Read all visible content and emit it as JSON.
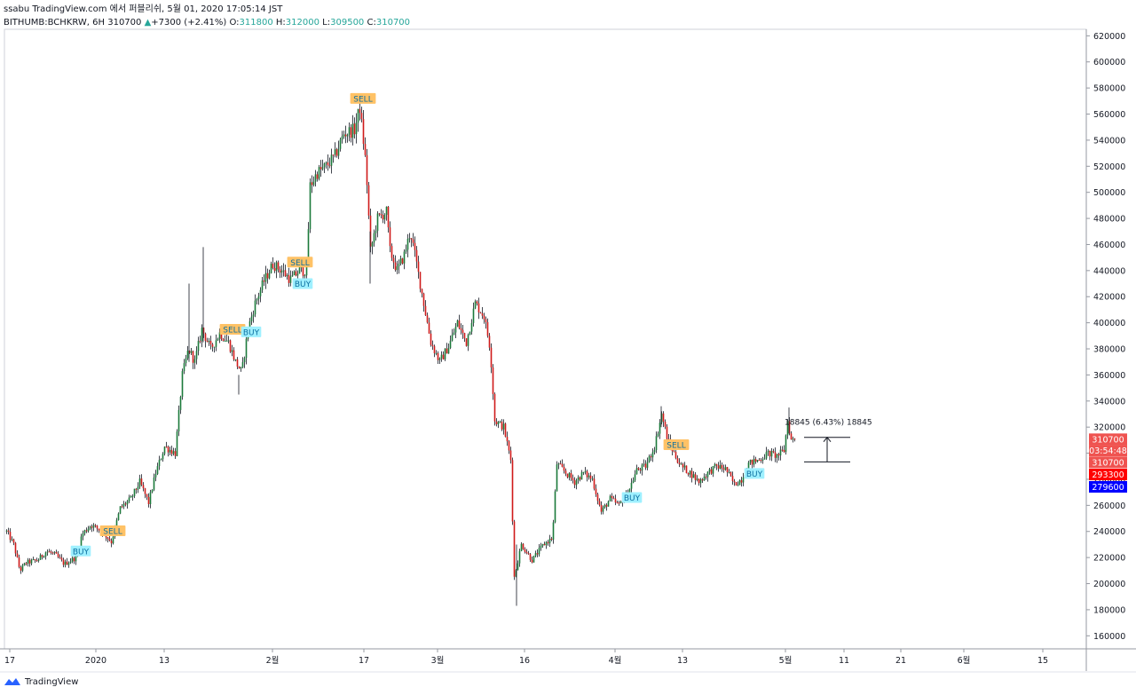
{
  "header": {
    "publish_line": "ssabu TradingView.com 에서 퍼블리쉬, 5월 01, 2020 17:05:14 JST",
    "symbol": "BITHUMB:BCHKRW, 6H",
    "last": "310700",
    "change": "+7300 (+2.41%)",
    "o_label": "O:",
    "o_val": "311800",
    "h_label": "H:",
    "h_val": "312000",
    "l_label": "L:",
    "l_val": "309500",
    "c_label": "C:",
    "c_val": "310700"
  },
  "footer": {
    "brand": "TradingView"
  },
  "colors": {
    "up": "#26a69a",
    "down": "#ef5350",
    "buy": "#9ff0ff",
    "sell": "#ffc266",
    "blue": "#0000ff"
  },
  "chart_data": {
    "type": "candlestick",
    "ylim": [
      150000,
      625000
    ],
    "y_ticks": [
      "160000",
      "180000",
      "200000",
      "220000",
      "240000",
      "260000",
      "280000",
      "300000",
      "320000",
      "340000",
      "360000",
      "380000",
      "400000",
      "420000",
      "440000",
      "460000",
      "480000",
      "500000",
      "520000",
      "540000",
      "560000",
      "580000",
      "600000",
      "620000"
    ],
    "x_ticks": [
      "17",
      "2020",
      "13",
      "2월",
      "17",
      "3월",
      "16",
      "4월",
      "13",
      "5월",
      "11",
      "21",
      "6월",
      "15"
    ],
    "price_path": [
      [
        0,
        240000
      ],
      [
        8,
        230000
      ],
      [
        15,
        210000
      ],
      [
        22,
        216000
      ],
      [
        35,
        218000
      ],
      [
        45,
        225000
      ],
      [
        55,
        222000
      ],
      [
        65,
        215000
      ],
      [
        78,
        220000
      ],
      [
        85,
        238000
      ],
      [
        95,
        245000
      ],
      [
        108,
        240000
      ],
      [
        118,
        232000
      ],
      [
        128,
        258000
      ],
      [
        140,
        265000
      ],
      [
        150,
        278000
      ],
      [
        160,
        262000
      ],
      [
        168,
        285000
      ],
      [
        178,
        305000
      ],
      [
        190,
        300000
      ],
      [
        198,
        360000
      ],
      [
        205,
        380000
      ],
      [
        212,
        370000
      ],
      [
        220,
        395000
      ],
      [
        230,
        380000
      ],
      [
        240,
        392000
      ],
      [
        250,
        385000
      ],
      [
        258,
        370000
      ],
      [
        265,
        362000
      ],
      [
        272,
        395000
      ],
      [
        280,
        415000
      ],
      [
        290,
        432000
      ],
      [
        300,
        445000
      ],
      [
        310,
        440000
      ],
      [
        320,
        433000
      ],
      [
        330,
        440000
      ],
      [
        338,
        440000
      ],
      [
        342,
        505000
      ],
      [
        350,
        515000
      ],
      [
        360,
        520000
      ],
      [
        370,
        528000
      ],
      [
        380,
        545000
      ],
      [
        392,
        548000
      ],
      [
        398,
        565000
      ],
      [
        405,
        520000
      ],
      [
        410,
        455000
      ],
      [
        418,
        480000
      ],
      [
        428,
        485000
      ],
      [
        432,
        455000
      ],
      [
        440,
        440000
      ],
      [
        448,
        452000
      ],
      [
        455,
        470000
      ],
      [
        462,
        445000
      ],
      [
        470,
        415000
      ],
      [
        478,
        385000
      ],
      [
        488,
        370000
      ],
      [
        498,
        382000
      ],
      [
        508,
        400000
      ],
      [
        518,
        385000
      ],
      [
        528,
        415000
      ],
      [
        538,
        405000
      ],
      [
        545,
        380000
      ],
      [
        550,
        325000
      ],
      [
        560,
        320000
      ],
      [
        568,
        295000
      ],
      [
        572,
        205000
      ],
      [
        580,
        230000
      ],
      [
        592,
        218000
      ],
      [
        605,
        230000
      ],
      [
        615,
        235000
      ],
      [
        620,
        292000
      ],
      [
        630,
        285000
      ],
      [
        640,
        278000
      ],
      [
        650,
        285000
      ],
      [
        660,
        280000
      ],
      [
        670,
        255000
      ],
      [
        680,
        265000
      ],
      [
        690,
        260000
      ],
      [
        700,
        270000
      ],
      [
        710,
        287000
      ],
      [
        720,
        290000
      ],
      [
        730,
        305000
      ],
      [
        738,
        330000
      ],
      [
        745,
        310000
      ],
      [
        752,
        300000
      ],
      [
        760,
        290000
      ],
      [
        770,
        285000
      ],
      [
        780,
        278000
      ],
      [
        790,
        285000
      ],
      [
        800,
        290000
      ],
      [
        810,
        288000
      ],
      [
        820,
        276000
      ],
      [
        828,
        280000
      ],
      [
        836,
        292000
      ],
      [
        848,
        295000
      ],
      [
        858,
        300000
      ],
      [
        868,
        298000
      ],
      [
        876,
        302000
      ],
      [
        880,
        325000
      ],
      [
        884,
        310000
      ],
      [
        889,
        310700
      ]
    ],
    "signals": [
      {
        "label": "BUY",
        "bar": 84,
        "price": 225000,
        "kind": "buy"
      },
      {
        "label": "SELL",
        "bar": 120,
        "price": 240500,
        "kind": "sell"
      },
      {
        "label": "SELL",
        "bar": 255,
        "price": 395000,
        "kind": "sell"
      },
      {
        "label": "BUY",
        "bar": 276,
        "price": 393000,
        "kind": "buy"
      },
      {
        "label": "SELL",
        "bar": 331,
        "price": 446500,
        "kind": "sell"
      },
      {
        "label": "BUY",
        "bar": 334,
        "price": 430000,
        "kind": "buy"
      },
      {
        "label": "SELL",
        "bar": 402,
        "price": 572000,
        "kind": "sell"
      },
      {
        "label": "BUY",
        "bar": 705,
        "price": 266000,
        "kind": "buy"
      },
      {
        "label": "SELL",
        "bar": 755,
        "price": 306500,
        "kind": "sell"
      },
      {
        "label": "BUY",
        "bar": 843,
        "price": 284500,
        "kind": "buy"
      }
    ],
    "measure": {
      "label": "18845 (6.43%) 18845",
      "from": 293300,
      "to": 312150,
      "bar_start": 906,
      "bar_end": 958
    },
    "price_labels": [
      {
        "text": "310700",
        "price": 310700,
        "bg": "#ef5350"
      },
      {
        "text": "03:54:48",
        "price": 302000,
        "bg": "#ef5350"
      },
      {
        "text": "310700",
        "price": 293000,
        "bg": "#ef5350"
      },
      {
        "text": "293300",
        "price": 283700,
        "bg": "#ff0000"
      },
      {
        "text": "279600",
        "price": 274200,
        "bg": "#0000ff"
      }
    ]
  }
}
